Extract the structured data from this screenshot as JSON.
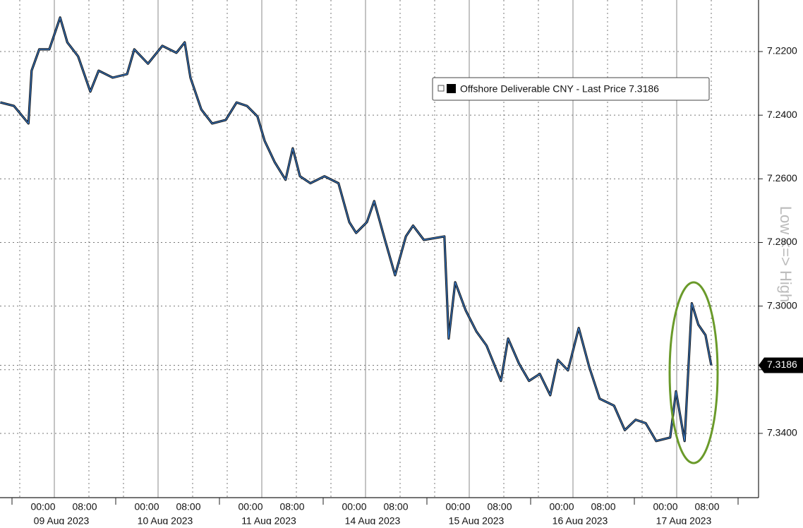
{
  "chart_data": {
    "type": "line",
    "legend": "Offshore Deliverable CNY - Last Price 7.3186",
    "last_price_label": "7.3186",
    "axis_caption": "Low <=> High",
    "inverted": true,
    "grid": true,
    "ylim": [
      7.2038,
      7.3602
    ],
    "yticks": [
      {
        "value": 7.22,
        "label": "7.2200"
      },
      {
        "value": 7.24,
        "label": "7.2400"
      },
      {
        "value": 7.26,
        "label": "7.2600"
      },
      {
        "value": 7.28,
        "label": "7.2800"
      },
      {
        "value": 7.3,
        "label": "7.3000"
      },
      {
        "value": 7.32,
        "label": "7.3200"
      },
      {
        "value": 7.34,
        "label": "7.3400"
      }
    ],
    "xticks": [
      {
        "date": "09 Aug 2023",
        "times": [
          "00:00",
          "08:00"
        ]
      },
      {
        "date": "10 Aug 2023",
        "times": [
          "00:00",
          "08:00"
        ]
      },
      {
        "date": "11 Aug 2023",
        "times": [
          "00:00",
          "08:00"
        ]
      },
      {
        "date": "14 Aug 2023",
        "times": [
          "00:00",
          "08:00"
        ]
      },
      {
        "date": "15 Aug 2023",
        "times": [
          "00:00",
          "08:00"
        ]
      },
      {
        "date": "16 Aug 2023",
        "times": [
          "00:00",
          "08:00"
        ]
      },
      {
        "date": "17 Aug 2023",
        "times": [
          "00:00",
          "08:00"
        ]
      }
    ],
    "series": [
      {
        "name": "Offshore Deliverable CNY",
        "color": "#3b7fd0",
        "x": [
          "08 Aug 2023 11:30",
          "08 Aug 2023 14:40",
          "08 Aug 2023 18:00",
          "08 Aug 2023 18:45",
          "08 Aug 2023 20:30",
          "08 Aug 2023 22:50",
          "09 Aug 2023 01:20",
          "09 Aug 2023 03:00",
          "09 Aug 2023 05:30",
          "09 Aug 2023 08:20",
          "09 Aug 2023 10:15",
          "09 Aug 2023 13:30",
          "09 Aug 2023 16:50",
          "09 Aug 2023 18:30",
          "09 Aug 2023 21:40",
          "10 Aug 2023 01:00",
          "10 Aug 2023 04:15",
          "10 Aug 2023 06:10",
          "10 Aug 2023 07:30",
          "10 Aug 2023 10:00",
          "10 Aug 2023 12:30",
          "10 Aug 2023 15:40",
          "10 Aug 2023 18:10",
          "10 Aug 2023 20:35",
          "10 Aug 2023 23:00",
          "11 Aug 2023 00:40",
          "11 Aug 2023 03:00",
          "11 Aug 2023 05:30",
          "11 Aug 2023 07:10",
          "11 Aug 2023 08:50",
          "11 Aug 2023 11:15",
          "11 Aug 2023 14:30",
          "11 Aug 2023 17:45",
          "11 Aug 2023 20:15",
          "11 Aug 2023 21:50",
          "14 Aug 2023 00:20",
          "14 Aug 2023 02:00",
          "14 Aug 2023 04:30",
          "14 Aug 2023 06:50",
          "14 Aug 2023 09:20",
          "14 Aug 2023 11:00",
          "14 Aug 2023 13:30",
          "14 Aug 2023 18:15",
          "14 Aug 2023 19:15",
          "14 Aug 2023 20:45",
          "14 Aug 2023 23:10",
          "15 Aug 2023 01:40",
          "15 Aug 2023 04:00",
          "15 Aug 2023 07:20",
          "15 Aug 2023 09:00",
          "15 Aug 2023 11:30",
          "15 Aug 2023 13:50",
          "15 Aug 2023 16:20",
          "15 Aug 2023 18:45",
          "15 Aug 2023 20:30",
          "15 Aug 2023 22:50",
          "16 Aug 2023 01:20",
          "16 Aug 2023 03:45",
          "16 Aug 2023 06:10",
          "16 Aug 2023 09:30",
          "16 Aug 2023 12:00",
          "16 Aug 2023 14:30",
          "16 Aug 2023 16:50",
          "16 Aug 2023 19:15",
          "16 Aug 2023 22:30",
          "16 Aug 2023 23:50",
          "17 Aug 2023 01:50",
          "17 Aug 2023 03:30",
          "17 Aug 2023 05:00",
          "17 Aug 2023 06:40",
          "17 Aug 2023 08:00"
        ],
        "values": [
          7.236,
          7.2371,
          7.2426,
          7.226,
          7.2193,
          7.2193,
          7.2093,
          7.2171,
          7.2215,
          7.2326,
          7.226,
          7.2282,
          7.2271,
          7.2193,
          7.2238,
          7.2182,
          7.2204,
          7.2171,
          7.2282,
          7.2382,
          7.2426,
          7.2415,
          7.236,
          7.2371,
          7.2404,
          7.2481,
          7.2548,
          7.2603,
          7.2504,
          7.2592,
          7.2614,
          7.2592,
          7.2614,
          7.2736,
          7.277,
          7.2736,
          7.267,
          7.2792,
          7.2903,
          7.2781,
          7.2747,
          7.2792,
          7.2781,
          7.3102,
          7.2925,
          7.3013,
          7.308,
          7.3124,
          7.3235,
          7.3102,
          7.318,
          7.3235,
          7.3213,
          7.328,
          7.3169,
          7.3202,
          7.3069,
          7.3191,
          7.3291,
          7.3313,
          7.339,
          7.3357,
          7.3368,
          7.3424,
          7.3413,
          7.3268,
          7.3424,
          7.2991,
          7.3058,
          7.3091,
          7.3186
        ]
      }
    ]
  }
}
